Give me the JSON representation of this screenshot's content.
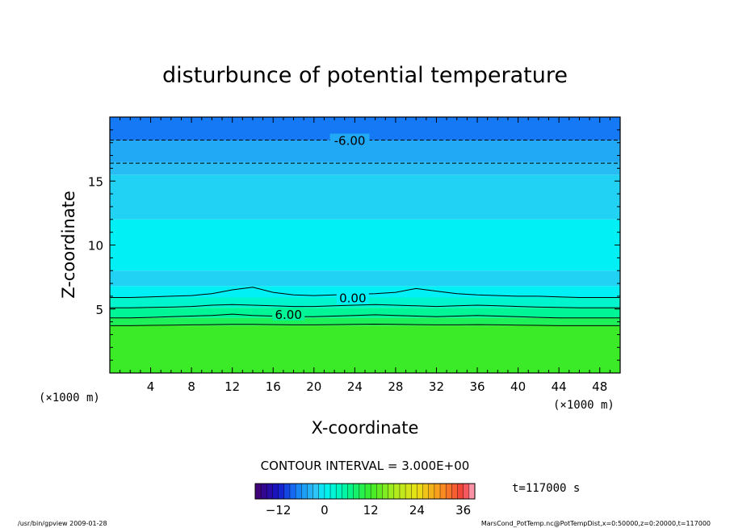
{
  "chart_data": {
    "type": "heatmap",
    "title": "disturbunce of potential temperature",
    "xlabel": "X-coordinate",
    "ylabel": "Z-coordinate",
    "x_unit_left": "(×1000 m)",
    "x_unit_right": "(×1000 m)",
    "xlim": [
      0,
      50
    ],
    "ylim": [
      0,
      20
    ],
    "x_ticks": [
      4,
      8,
      12,
      16,
      20,
      24,
      28,
      32,
      36,
      40,
      44,
      48
    ],
    "y_ticks": [
      5,
      10,
      15
    ],
    "bands": [
      {
        "z_from": 0,
        "z_to": 3.7,
        "value": 12
      },
      {
        "z_from": 3.7,
        "z_to": 4.3,
        "value": 9
      },
      {
        "z_from": 4.3,
        "z_to": 5.1,
        "value": 6
      },
      {
        "z_from": 5.1,
        "z_to": 5.9,
        "value": 3
      },
      {
        "z_from": 5.9,
        "z_to": 6.8,
        "value": 0
      },
      {
        "z_from": 6.8,
        "z_to": 8.0,
        "value": -1.5
      },
      {
        "z_from": 8.0,
        "z_to": 12.0,
        "value": 0
      },
      {
        "z_from": 12.0,
        "z_to": 15.5,
        "value": -1.5
      },
      {
        "z_from": 15.5,
        "z_to": 16.5,
        "value": -3
      },
      {
        "z_from": 16.5,
        "z_to": 18.2,
        "value": -4.5
      },
      {
        "z_from": 18.2,
        "z_to": 20,
        "value": -7.5
      }
    ],
    "contour_labels": [
      {
        "text": "-6.00",
        "x": 23.5,
        "z": 18.2
      },
      {
        "text": "0.00",
        "x": 23.8,
        "z": 5.9
      },
      {
        "text": "6.00",
        "x": 17.5,
        "z": 4.6
      }
    ],
    "contours": [
      {
        "level": 6,
        "style": "solid",
        "z": [
          4.3,
          4.3,
          4.35,
          4.4,
          4.45,
          4.5,
          4.6,
          4.5,
          4.45,
          4.4,
          4.4,
          4.45,
          4.5,
          4.55,
          4.5,
          4.45,
          4.4,
          4.45,
          4.5,
          4.45,
          4.4,
          4.35,
          4.3,
          4.3,
          4.3,
          4.3
        ]
      },
      {
        "level": 9,
        "style": "solid",
        "z": [
          3.7,
          3.7,
          3.72,
          3.74,
          3.76,
          3.78,
          3.8,
          3.8,
          3.78,
          3.76,
          3.76,
          3.78,
          3.8,
          3.82,
          3.8,
          3.78,
          3.76,
          3.76,
          3.78,
          3.76,
          3.74,
          3.72,
          3.7,
          3.7,
          3.7,
          3.7
        ]
      },
      {
        "level": 3,
        "style": "solid",
        "z": [
          5.1,
          5.1,
          5.12,
          5.15,
          5.2,
          5.3,
          5.35,
          5.3,
          5.25,
          5.2,
          5.2,
          5.25,
          5.3,
          5.35,
          5.3,
          5.25,
          5.2,
          5.25,
          5.3,
          5.25,
          5.2,
          5.15,
          5.12,
          5.1,
          5.1,
          5.1
        ]
      },
      {
        "level": 0,
        "style": "solid",
        "z": [
          5.9,
          5.9,
          5.95,
          6.0,
          6.05,
          6.2,
          6.5,
          6.7,
          6.3,
          6.1,
          6.05,
          6.1,
          6.15,
          6.2,
          6.3,
          6.6,
          6.4,
          6.2,
          6.1,
          6.05,
          6.0,
          6.0,
          5.95,
          5.9,
          5.9,
          5.9
        ]
      },
      {
        "level": -6,
        "style": "dashed",
        "z": [
          18.2,
          18.2,
          18.2,
          18.2,
          18.2,
          18.2,
          18.2,
          18.2,
          18.2,
          18.2,
          18.2,
          18.2,
          18.2,
          18.2,
          18.2,
          18.2,
          18.2,
          18.2,
          18.2,
          18.2,
          18.2,
          18.2,
          18.2,
          18.2,
          18.2,
          18.2
        ]
      },
      {
        "level": -3,
        "style": "dashed",
        "z": [
          16.4,
          16.4,
          16.4,
          16.4,
          16.4,
          16.4,
          16.4,
          16.4,
          16.4,
          16.4,
          16.4,
          16.4,
          16.4,
          16.4,
          16.4,
          16.4,
          16.4,
          16.4,
          16.4,
          16.4,
          16.4,
          16.4,
          16.4,
          16.4,
          16.4,
          16.4
        ]
      }
    ],
    "colorbar": {
      "min": -18,
      "max": 39,
      "ticks": [
        -12,
        0,
        12,
        24,
        36
      ],
      "title": "CONTOUR INTERVAL = 3.000E+00"
    }
  },
  "time_label": "t=117000 s",
  "footer_left": "/usr/bin/gpview   2009-01-28",
  "footer_right": "MarsCond_PotTemp.nc@PotTempDist,x=0:50000,z=0:20000,t=117000"
}
